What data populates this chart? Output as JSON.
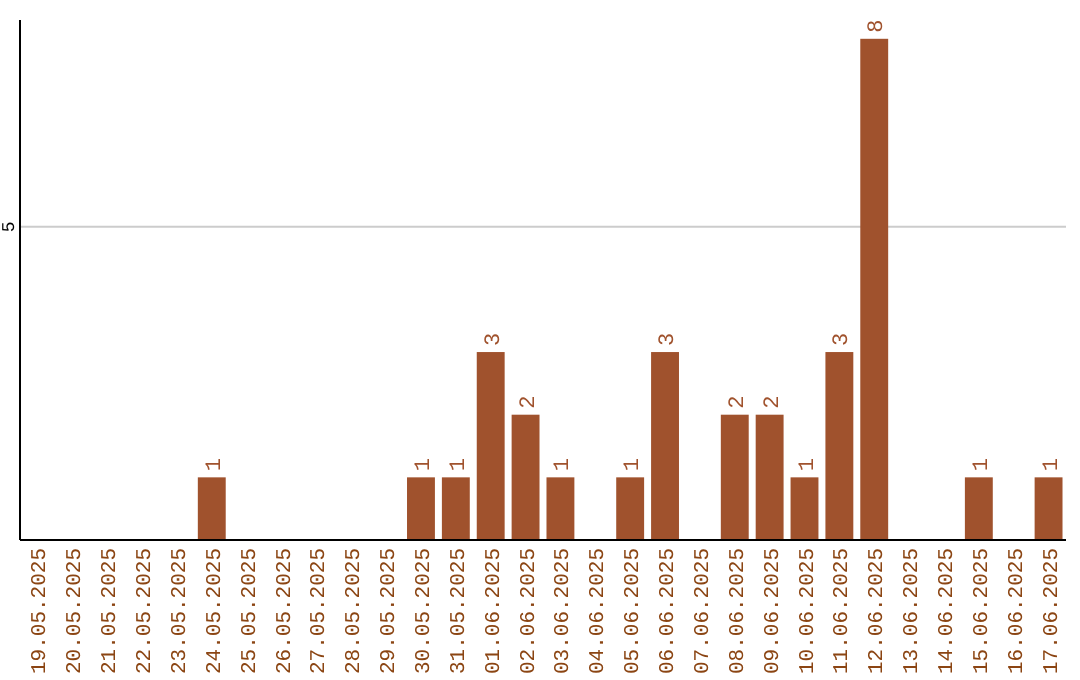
{
  "chart_data": {
    "type": "bar",
    "categories": [
      "19.05.2025",
      "20.05.2025",
      "21.05.2025",
      "22.05.2025",
      "23.05.2025",
      "24.05.2025",
      "25.05.2025",
      "26.05.2025",
      "27.05.2025",
      "28.05.2025",
      "29.05.2025",
      "30.05.2025",
      "31.05.2025",
      "01.06.2025",
      "02.06.2025",
      "03.06.2025",
      "04.06.2025",
      "05.06.2025",
      "06.06.2025",
      "07.06.2025",
      "08.06.2025",
      "09.06.2025",
      "10.06.2025",
      "11.06.2025",
      "12.06.2025",
      "13.06.2025",
      "14.06.2025",
      "15.06.2025",
      "16.06.2025",
      "17.06.2025"
    ],
    "values": [
      0,
      0,
      0,
      0,
      0,
      1,
      0,
      0,
      0,
      0,
      0,
      1,
      1,
      3,
      2,
      1,
      0,
      1,
      3,
      0,
      2,
      2,
      1,
      3,
      8,
      0,
      0,
      1,
      0,
      1
    ],
    "value_labels": [
      null,
      null,
      null,
      null,
      null,
      "1",
      null,
      null,
      null,
      null,
      null,
      "1",
      "1",
      "3",
      "2",
      "1",
      null,
      "1",
      "3",
      null,
      "2",
      "2",
      "1",
      "3",
      "8",
      null,
      null,
      "1",
      null,
      "1"
    ],
    "color": "#a0522d",
    "ylim": [
      0,
      8.3
    ],
    "yticks": [
      5
    ],
    "grid": "y"
  }
}
